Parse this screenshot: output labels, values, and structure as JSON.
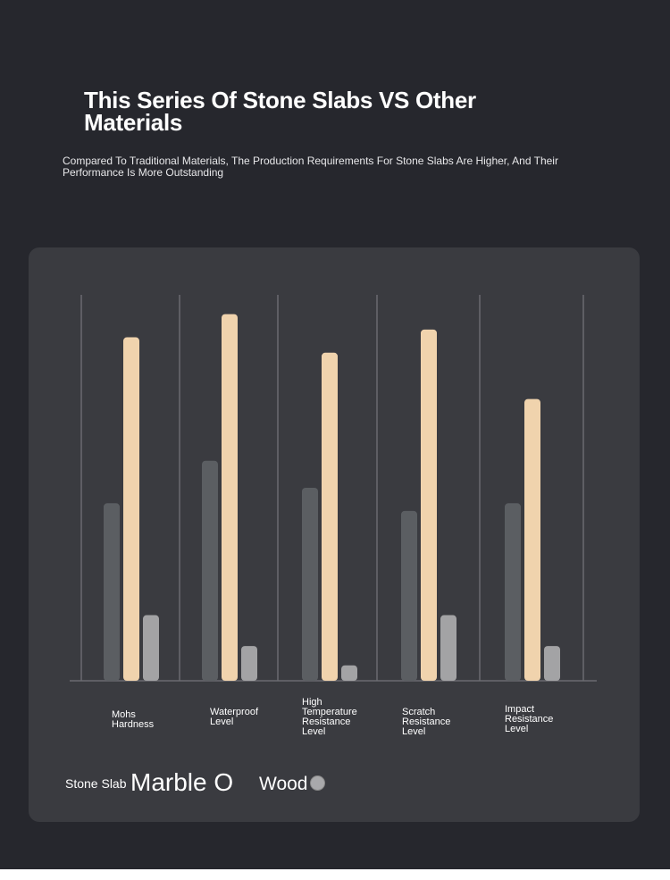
{
  "header": {
    "title": "This Series Of Stone Slabs VS Other Materials",
    "subtitle": "Compared To Traditional Materials, The Production Requirements For Stone Slabs Are Higher, And Their Performance Is More Outstanding"
  },
  "chart_data": {
    "type": "bar",
    "title": "This Series Of Stone Slabs VS Other Materials",
    "categories": [
      "Mohs Hardness",
      "Waterproof Level",
      "High Temperature Resistance Level",
      "Scratch Resistance Level",
      "Impact Resistance Level"
    ],
    "series": [
      {
        "name": "Marble",
        "color": "#5b5e62",
        "values": [
          46,
          57,
          50,
          44,
          46
        ]
      },
      {
        "name": "Stone Slab",
        "color": "#f0d3ad",
        "values": [
          89,
          95,
          85,
          91,
          73
        ]
      },
      {
        "name": "Wood",
        "color": "#a3a3a5",
        "values": [
          17,
          9,
          4,
          17,
          9
        ]
      }
    ],
    "ylim": [
      0,
      100
    ],
    "grid": "vertical-separators",
    "legend": "bottom-left"
  },
  "legend": {
    "stone": "Stone Slab",
    "marble": "Marble O",
    "wood": "Wood"
  }
}
